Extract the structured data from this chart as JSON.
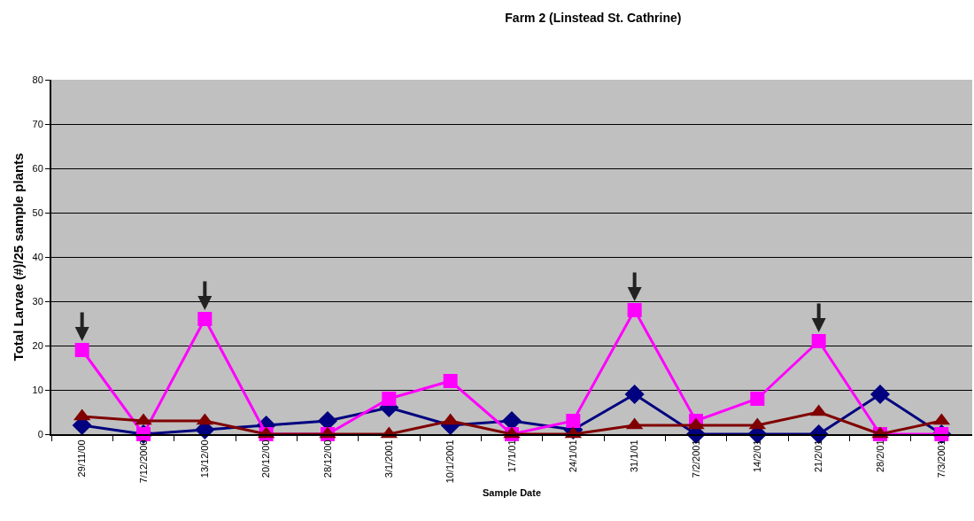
{
  "chart_data": {
    "type": "line",
    "title": "Farm 2 (Linstead St. Cathrine)",
    "xlabel": "Sample Date",
    "ylabel": "Total Larvae (#)/25 sample plants",
    "categories": [
      "29/11/00",
      "7/12/2000",
      "13/12/00",
      "20/12/00",
      "28/12/00",
      "3/1/2001",
      "10/1/2001",
      "17/1/01",
      "24/1/01",
      "31/1/01",
      "7/2/2001",
      "14/2/01",
      "21/2/01",
      "28/2/01",
      "7/3/2001"
    ],
    "series": [
      {
        "color": "#000080",
        "marker": "diamond",
        "values": [
          2,
          0,
          1,
          2,
          3,
          6,
          2,
          3,
          1,
          9,
          0,
          0,
          0,
          9,
          0
        ]
      },
      {
        "color": "#ff00ff",
        "marker": "square",
        "values": [
          19,
          0,
          26,
          0,
          0,
          8,
          12,
          0,
          3,
          28,
          3,
          8,
          21,
          0,
          0
        ]
      },
      {
        "color": "#800000",
        "marker": "triangle",
        "values": [
          4,
          3,
          3,
          0,
          0,
          0,
          3,
          0,
          0,
          2,
          2,
          2,
          5,
          0,
          3
        ]
      }
    ],
    "ylim": [
      0,
      80
    ],
    "yticks": [
      0,
      10,
      20,
      30,
      40,
      50,
      60,
      70,
      80
    ],
    "grid": "y",
    "line_style": "solid"
  }
}
